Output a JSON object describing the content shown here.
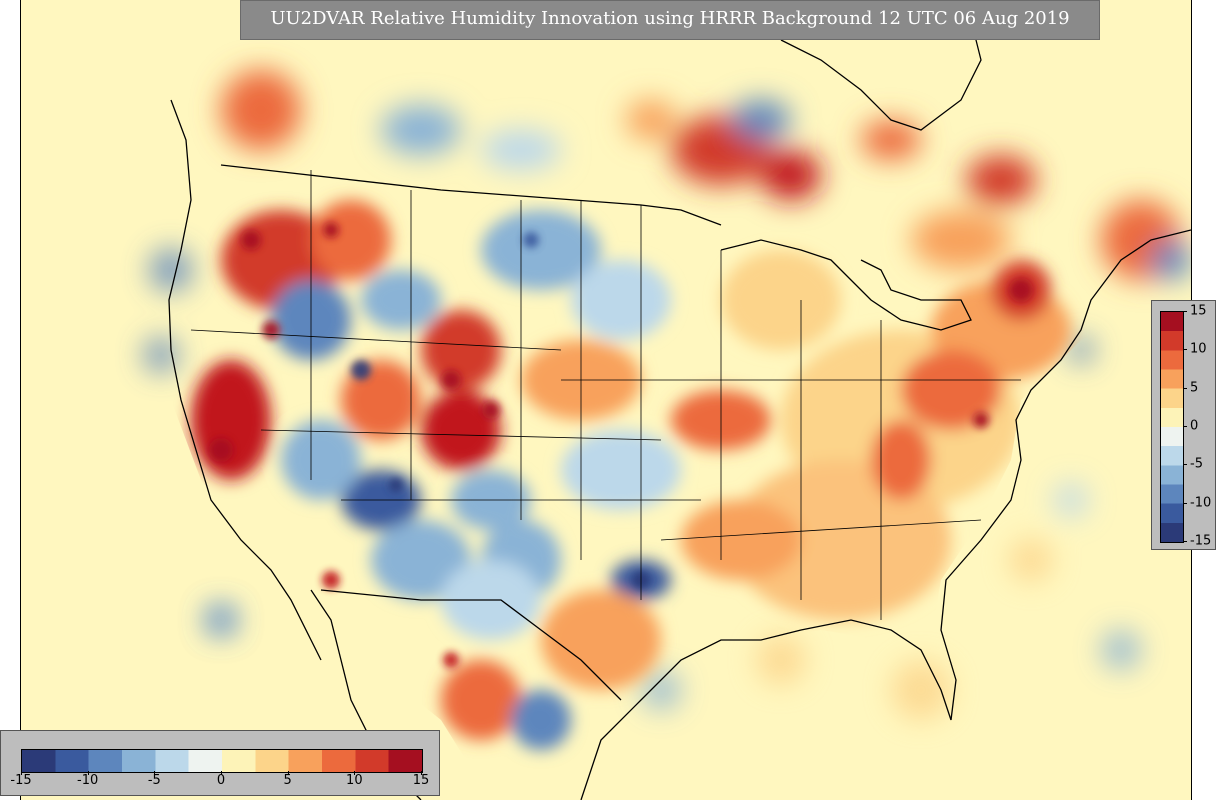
{
  "title": "UU2DVAR Relative Humidity Innovation using HRRR Background 12 UTC 06 Aug 2019",
  "colorbar": {
    "min": -15,
    "max": 15,
    "ticks": [
      "-15",
      "-10",
      "-5",
      "0",
      "5",
      "10",
      "15"
    ],
    "colors": [
      "#2b3a78",
      "#3a5a9e",
      "#5d86bd",
      "#8ab3d6",
      "#bcd8ea",
      "#eef3f0",
      "#fdf3b8",
      "#fcd48a",
      "#f8a15c",
      "#ec6a3d",
      "#d23a2a",
      "#a50f20"
    ]
  },
  "map": {
    "region": "CONUS",
    "background_color": "#fff7bf",
    "palette": {
      "strong_positive": "#c1121f",
      "positive": "#ef8a47",
      "weak_positive": "#fbd08a",
      "neutral": "#fff7bf",
      "weak_negative": "#bcd8ea",
      "negative": "#5d86bd",
      "strong_negative": "#2b3a78"
    }
  }
}
